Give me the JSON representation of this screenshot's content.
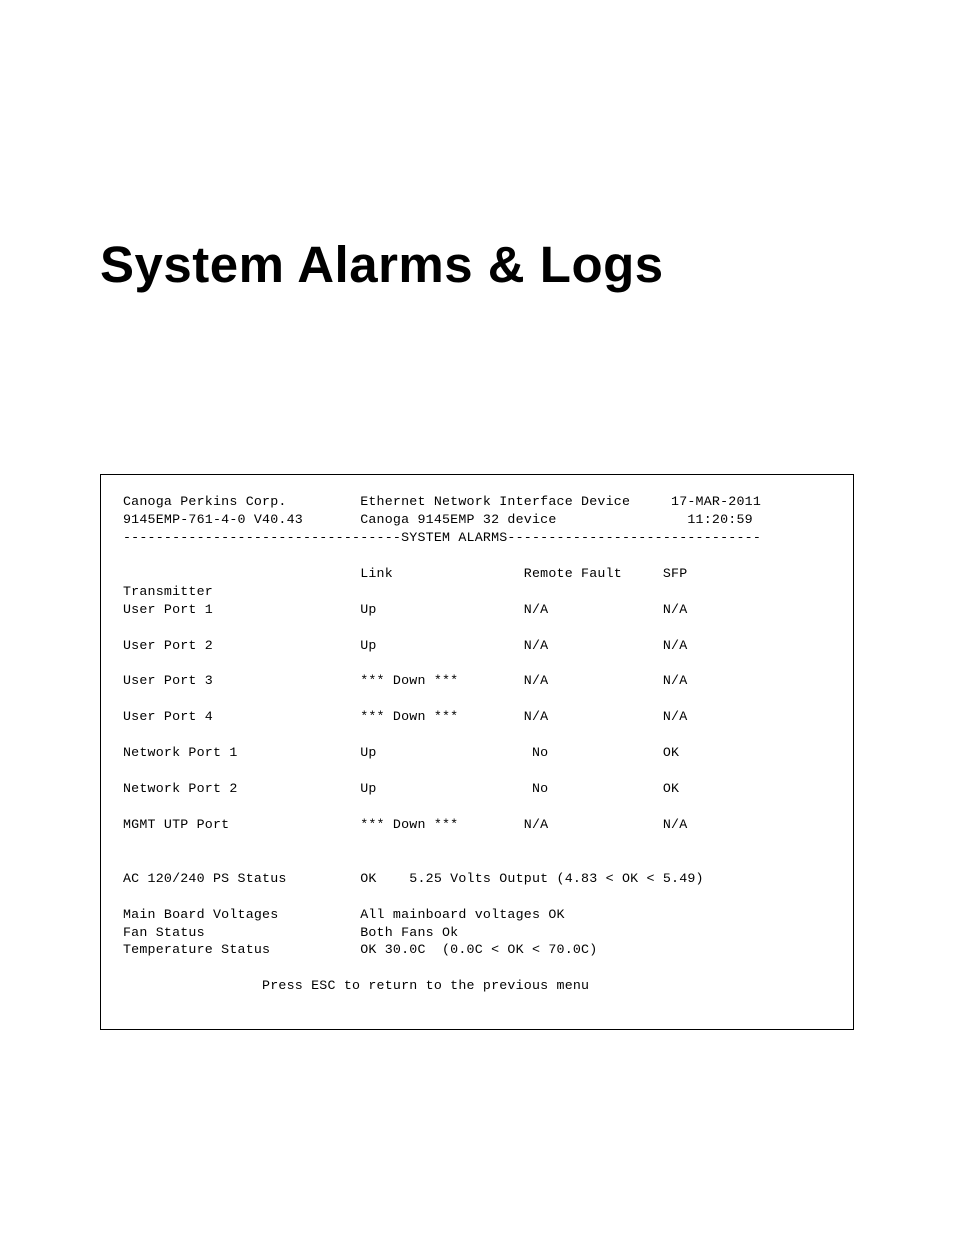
{
  "page_title": "System Alarms & Logs",
  "terminal": {
    "header": {
      "company": "Canoga Perkins Corp.",
      "device_type": "Ethernet Network Interface Device",
      "date": "17-MAR-2011",
      "model": "9145EMP-761-4-0 V40.43",
      "device_name": "Canoga 9145EMP 32 device",
      "time": "11:20:59"
    },
    "section_title": "SYSTEM ALARMS",
    "columns": [
      "Link",
      "Remote Fault",
      "SFP"
    ],
    "transmitter_label": "Transmitter",
    "ports": [
      {
        "name": "User Port 1",
        "link": "Up",
        "remote_fault": "N/A",
        "sfp": "N/A"
      },
      {
        "name": "User Port 2",
        "link": "Up",
        "remote_fault": "N/A",
        "sfp": "N/A"
      },
      {
        "name": "User Port 3",
        "link": "*** Down ***",
        "remote_fault": "N/A",
        "sfp": "N/A"
      },
      {
        "name": "User Port 4",
        "link": "*** Down ***",
        "remote_fault": "N/A",
        "sfp": "N/A"
      },
      {
        "name": "Network Port 1",
        "link": "Up",
        "remote_fault": " No",
        "sfp": "OK"
      },
      {
        "name": "Network Port 2",
        "link": "Up",
        "remote_fault": " No",
        "sfp": "OK"
      },
      {
        "name": "MGMT UTP Port",
        "link": "*** Down ***",
        "remote_fault": "N/A",
        "sfp": "N/A"
      }
    ],
    "status_lines": {
      "ps_status_label": "AC 120/240 PS Status",
      "ps_status_value": "OK    5.25 Volts Output (4.83 < OK < 5.49)",
      "main_board_label": "Main Board Voltages",
      "main_board_value": "All mainboard voltages OK",
      "fan_label": "Fan Status",
      "fan_value": "Both Fans Ok",
      "temp_label": "Temperature Status",
      "temp_value": "OK 30.0C  (0.0C < OK < 70.0C)"
    },
    "footer": "Press ESC to return to the previous menu"
  },
  "styling": {
    "title_font_size": 51,
    "title_font_weight": 900,
    "terminal_font_family": "Courier New",
    "terminal_font_size": 13.3,
    "background_color": "#ffffff",
    "text_color": "#000000",
    "border_color": "#000000"
  }
}
